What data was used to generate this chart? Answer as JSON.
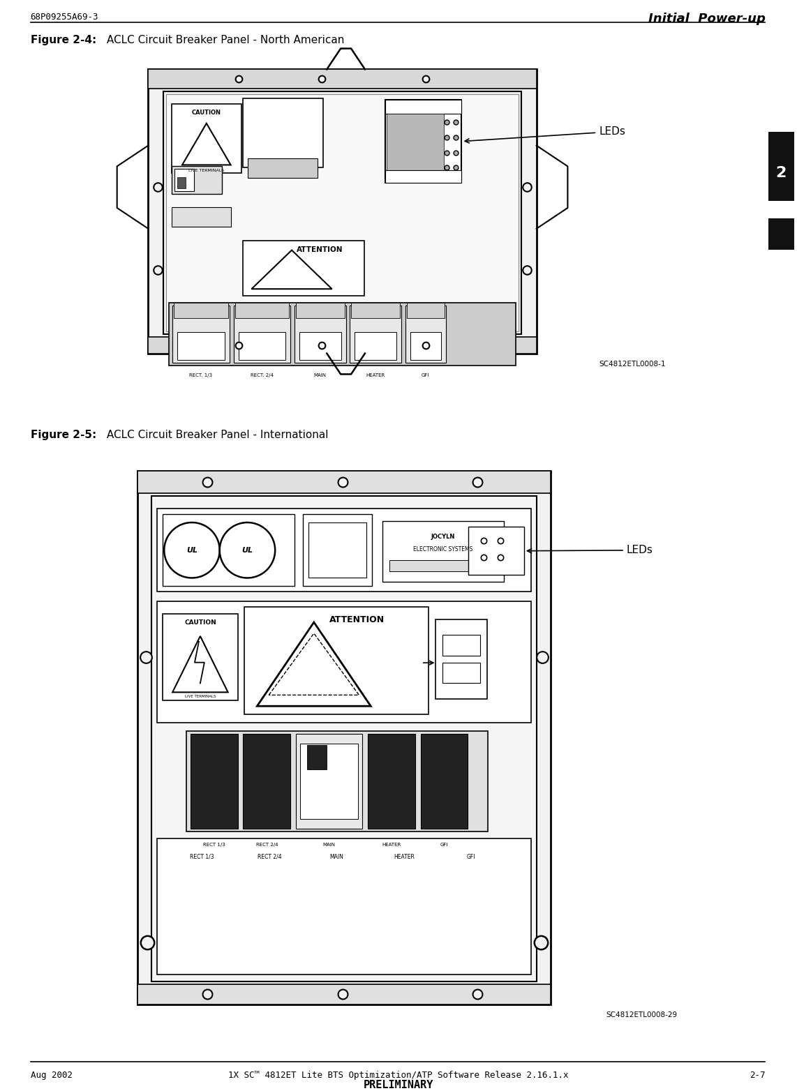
{
  "page_width": 11.42,
  "page_height": 15.64,
  "bg_color": "#ffffff",
  "header_left": "68P09255A69-3",
  "header_right": "Initial  Power-up",
  "footer_left": "Aug 2002",
  "footer_center": "1X SC™ 4812ET Lite BTS Optimization/ATP Software Release 2.16.1.x",
  "footer_right": "2-7",
  "footer_sub": "PRELIMINARY",
  "fig1_caption_bold": "Figure 2-4:",
  "fig1_caption_rest": " ACLC Circuit Breaker Panel - North American",
  "fig2_caption_bold": "Figure 2-5:",
  "fig2_caption_rest": " ACLC Circuit Breaker Panel - International",
  "fig1_ref": "SC4812ETL0008-1",
  "fig2_ref": "SC4812ETL0008-29",
  "tab_label": "2",
  "tab_color": "#111111",
  "cb1_labels": [
    "RECT. 1/3",
    "RECT. 2/4",
    "MAIN",
    "HEATER",
    "GFI"
  ],
  "cb2_labels": [
    "RECT 1/3",
    "RECT 2/4",
    "MAIN",
    "HEATER",
    "GFI"
  ]
}
